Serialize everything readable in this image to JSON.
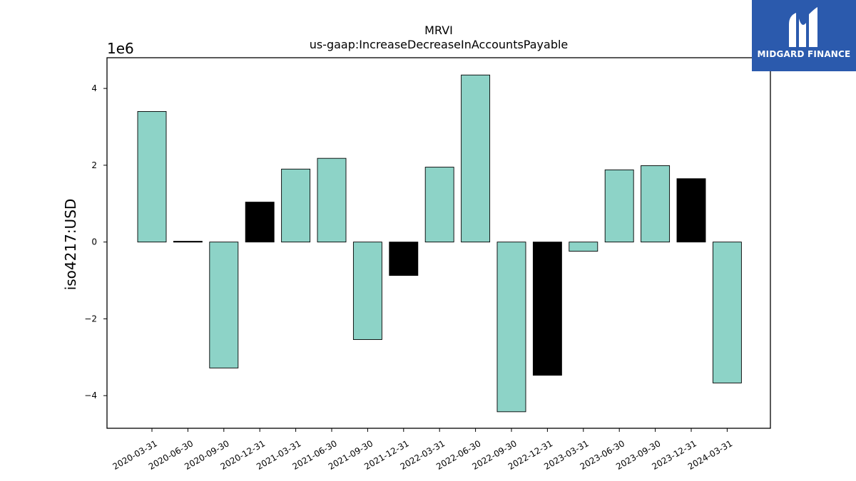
{
  "chart_data": {
    "type": "bar",
    "title": "MRVI",
    "subtitle": "us-gaap:IncreaseDecreaseInAccountsPayable",
    "ylabel": "iso4217:USD",
    "xlabel": "",
    "scale_label": "1e6",
    "ylim": [
      -4.85,
      4.8
    ],
    "yticks": [
      -4,
      -2,
      0,
      2,
      4
    ],
    "ytick_labels": [
      "−4",
      "−2",
      "0",
      "2",
      "4"
    ],
    "grid": false,
    "categories": [
      "2020-03-31",
      "2020-06-30",
      "2020-09-30",
      "2020-12-31",
      "2021-03-31",
      "2021-06-30",
      "2021-09-30",
      "2021-12-31",
      "2022-03-31",
      "2022-06-30",
      "2022-09-30",
      "2022-12-31",
      "2023-03-31",
      "2023-06-30",
      "2023-09-30",
      "2023-12-31",
      "2024-03-31"
    ],
    "values": [
      3.4,
      0.02,
      -3.28,
      1.04,
      1.9,
      2.18,
      -2.54,
      -0.87,
      1.95,
      4.35,
      -4.42,
      -3.47,
      -0.24,
      1.88,
      1.99,
      1.65,
      -3.67
    ],
    "bar_colors": [
      "#8dd3c7",
      "#000000",
      "#8dd3c7",
      "#000000",
      "#8dd3c7",
      "#8dd3c7",
      "#8dd3c7",
      "#000000",
      "#8dd3c7",
      "#8dd3c7",
      "#8dd3c7",
      "#000000",
      "#8dd3c7",
      "#8dd3c7",
      "#8dd3c7",
      "#000000",
      "#8dd3c7"
    ]
  },
  "logo": {
    "text": "MIDGARD FINANCE",
    "color": "#2b5aad"
  }
}
